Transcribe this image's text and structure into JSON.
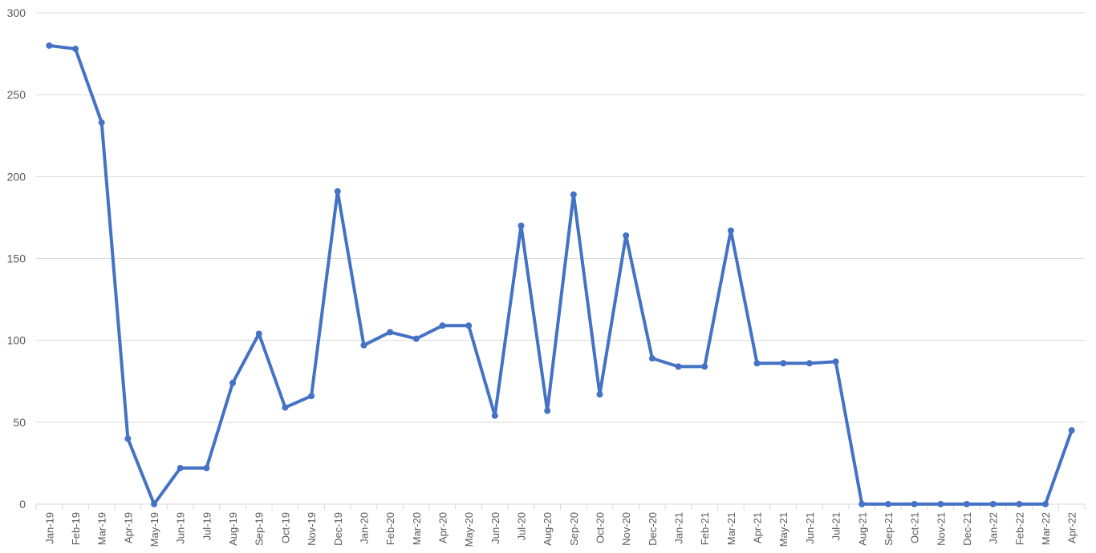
{
  "chart_data": {
    "type": "line",
    "title": "",
    "xlabel": "",
    "ylabel": "",
    "ylim": [
      0,
      300
    ],
    "yticks": [
      0,
      50,
      100,
      150,
      200,
      250,
      300
    ],
    "grid": true,
    "legend": "none",
    "categories": [
      "Jan-19",
      "Feb-19",
      "Mar-19",
      "Apr-19",
      "May-19",
      "Jun-19",
      "Jul-19",
      "Aug-19",
      "Sep-19",
      "Oct-19",
      "Nov-19",
      "Dec-19",
      "Jan-20",
      "Feb-20",
      "Mar-20",
      "Apr-20",
      "May-20",
      "Jun-20",
      "Jul-20",
      "Aug-20",
      "Sep-20",
      "Oct-20",
      "Nov-20",
      "Dec-20",
      "Jan-21",
      "Feb-21",
      "Mar-21",
      "Apr-21",
      "May-21",
      "Jun-21",
      "Jul-21",
      "Aug-21",
      "Sep-21",
      "Oct-21",
      "Nov-21",
      "Dec-21",
      "Jan-22",
      "Feb-22",
      "Mar-22",
      "Apr-22"
    ],
    "series": [
      {
        "color": "#4472c4",
        "values": [
          280,
          278,
          233,
          40,
          0,
          22,
          22,
          74,
          104,
          59,
          66,
          191,
          97,
          105,
          101,
          109,
          109,
          54,
          170,
          57,
          189,
          67,
          164,
          89,
          84,
          84,
          167,
          86,
          86,
          86,
          87,
          0,
          0,
          0,
          0,
          0,
          0,
          0,
          0,
          45
        ]
      }
    ]
  },
  "colors": {
    "series": "#4472c4",
    "grid": "#d9d9d9",
    "text": "#595959",
    "background": "#ffffff"
  }
}
